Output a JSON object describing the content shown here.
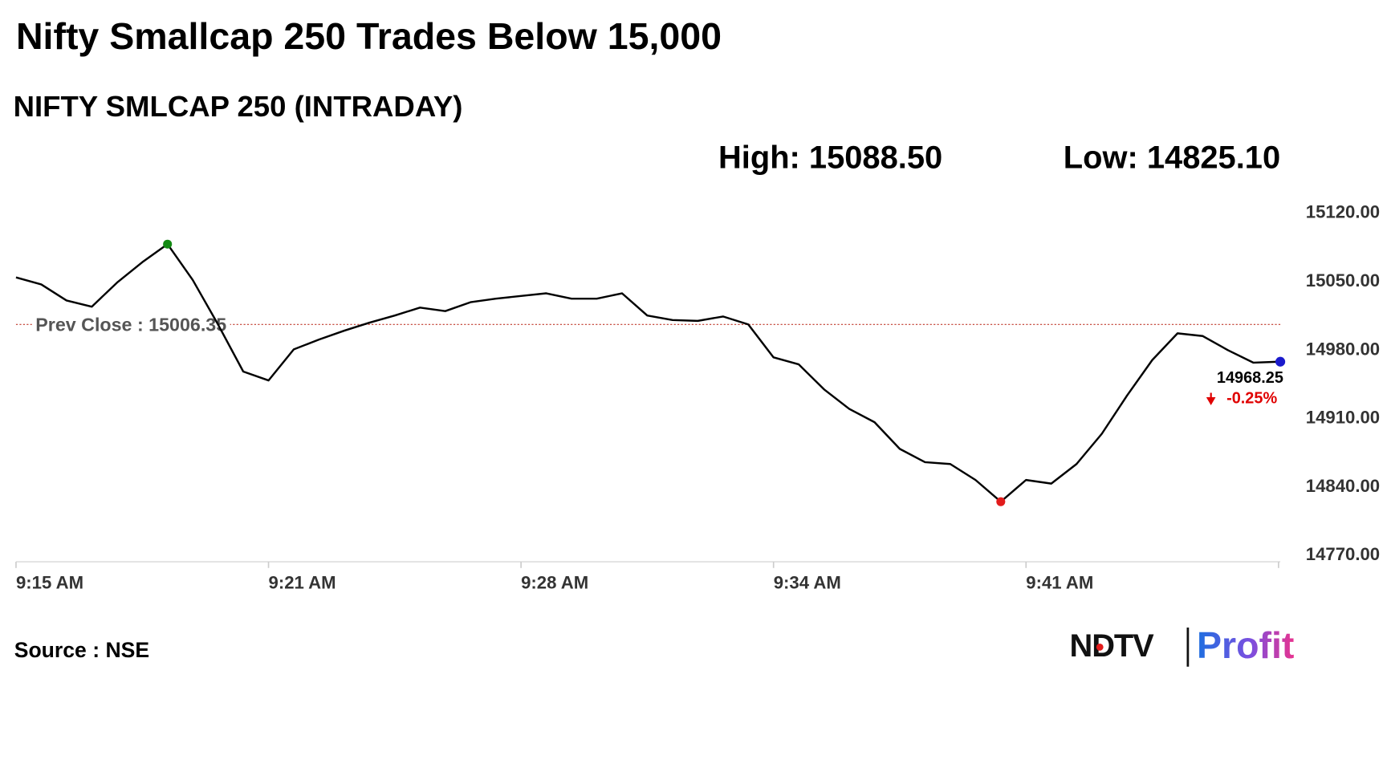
{
  "chart_data": {
    "type": "line",
    "title": "Nifty Smallcap 250 Trades Below 15,000",
    "subtitle": "NIFTY SMLCAP 250 (INTRADAY)",
    "high": {
      "label": "High:",
      "value": 15088.5,
      "value_label": "15088.50",
      "index": 6,
      "color": "#138a13"
    },
    "low": {
      "label": "Low:",
      "value": 14825.1,
      "value_label": "14825.10",
      "index": 39,
      "color": "#e21b1b"
    },
    "prev_close": {
      "label": "Prev Close :",
      "value": 15006.35,
      "value_label": "15006.35",
      "color": "#c0392b"
    },
    "last": {
      "value": 14968.25,
      "value_label": "14968.25",
      "color": "#1a1acc"
    },
    "change": {
      "value": -0.25,
      "label": "-0.25%"
    },
    "categories": [
      "9:15 AM",
      null,
      null,
      null,
      null,
      null,
      null,
      null,
      null,
      null,
      "9:21 AM",
      null,
      null,
      null,
      null,
      null,
      null,
      null,
      null,
      null,
      "9:28 AM",
      null,
      null,
      null,
      null,
      null,
      null,
      null,
      null,
      null,
      "9:34 AM",
      null,
      null,
      null,
      null,
      null,
      null,
      null,
      null,
      null,
      "9:41 AM",
      null,
      null,
      null,
      null,
      null,
      null,
      null,
      null,
      null,
      null
    ],
    "series": [
      {
        "name": "NIFTY SMLCAP 250",
        "color": "#000000",
        "values": [
          15054.5,
          15047.3,
          15030.9,
          15024.5,
          15049.1,
          15070,
          15088.5,
          15051.8,
          15006.4,
          14958.2,
          14949.1,
          14980.9,
          14990.9,
          15000,
          15008.2,
          15015.5,
          15023.6,
          15020,
          15029.1,
          15032.7,
          15035.5,
          15038.2,
          15032.7,
          15032.7,
          15038.2,
          15015.5,
          15010.9,
          15010,
          15014.5,
          15006.4,
          14972.7,
          14965.5,
          14940,
          14920,
          14906.4,
          14879.1,
          14865.5,
          14863.6,
          14847.3,
          14825.1,
          14847.3,
          14843.6,
          14863.6,
          14894.5,
          14933.6,
          14970,
          14997.3,
          14994.5,
          14980,
          14967.3,
          14968.25
        ]
      }
    ],
    "ylim": [
      14770,
      15120
    ],
    "yticks": [
      {
        "value": 14770,
        "label": "14770.00"
      },
      {
        "value": 14840,
        "label": "14840.00"
      },
      {
        "value": 14910,
        "label": "14910.00"
      },
      {
        "value": 14980,
        "label": "14980.00"
      },
      {
        "value": 15050,
        "label": "15050.00"
      },
      {
        "value": 15120,
        "label": "15120.00"
      }
    ],
    "source": "Source : NSE",
    "logo": {
      "left": "NDTV",
      "right": "Profit"
    }
  }
}
